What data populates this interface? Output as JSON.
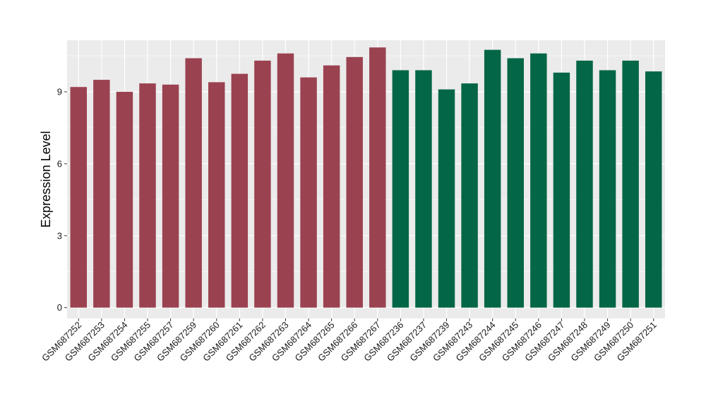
{
  "chart_data": {
    "type": "bar",
    "title": "",
    "xlabel": "",
    "ylabel": "Expression Level",
    "ylim": [
      -0.45,
      11.15
    ],
    "yticks": [
      0,
      3,
      6,
      9
    ],
    "grid": true,
    "legend": "none",
    "panel_background": "#ebebeb",
    "grid_color": "#ffffff",
    "categories": [
      "GSM687252",
      "GSM687253",
      "GSM687254",
      "GSM687255",
      "GSM687257",
      "GSM687259",
      "GSM687260",
      "GSM687261",
      "GSM687262",
      "GSM687263",
      "GSM687264",
      "GSM687265",
      "GSM687266",
      "GSM687267",
      "GSM687236",
      "GSM687237",
      "GSM687239",
      "GSM687243",
      "GSM687244",
      "GSM687245",
      "GSM687246",
      "GSM687247",
      "GSM687248",
      "GSM687249",
      "GSM687250",
      "GSM687251"
    ],
    "values": [
      9.2,
      9.5,
      9.0,
      9.35,
      9.3,
      10.4,
      9.4,
      9.75,
      10.3,
      10.6,
      9.6,
      10.1,
      10.45,
      10.85,
      9.9,
      9.9,
      9.1,
      9.35,
      10.75,
      10.4,
      10.6,
      9.8,
      10.3,
      9.9,
      10.3,
      9.85
    ],
    "bar_colors": [
      "#9b4250",
      "#9b4250",
      "#9b4250",
      "#9b4250",
      "#9b4250",
      "#9b4250",
      "#9b4250",
      "#9b4250",
      "#9b4250",
      "#9b4250",
      "#9b4250",
      "#9b4250",
      "#9b4250",
      "#9b4250",
      "#036647",
      "#036647",
      "#036647",
      "#036647",
      "#036647",
      "#036647",
      "#036647",
      "#036647",
      "#036647",
      "#036647",
      "#036647",
      "#036647"
    ]
  }
}
